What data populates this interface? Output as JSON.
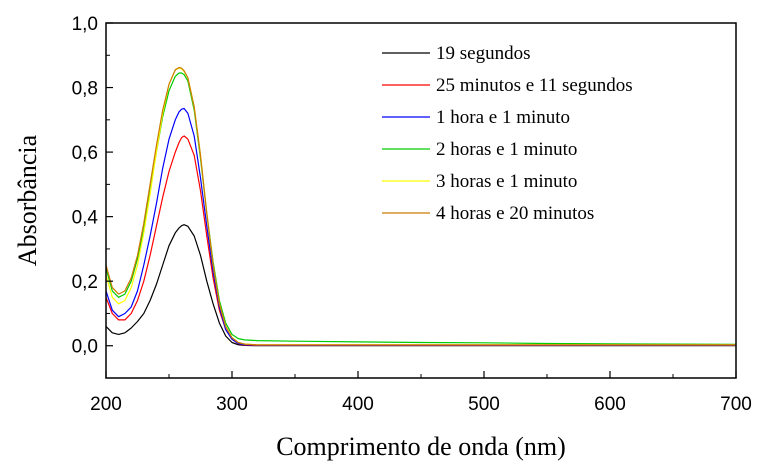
{
  "chart_data": {
    "type": "line",
    "xlabel": "Comprimento de onda (nm)",
    "ylabel": "Absorbância",
    "xlim": [
      200,
      700
    ],
    "ylim": [
      -0.1,
      1.0
    ],
    "x_ticks": [
      200,
      300,
      400,
      500,
      600,
      700
    ],
    "x_tick_labels": [
      "200",
      "300",
      "400",
      "500",
      "600",
      "700"
    ],
    "y_ticks": [
      0.0,
      0.2,
      0.4,
      0.6,
      0.8,
      1.0
    ],
    "y_tick_labels": [
      "0,0",
      "0,2",
      "0,4",
      "0,6",
      "0,8",
      "1,0"
    ],
    "grid": false,
    "legend_position": "top-right",
    "x": [
      200,
      205,
      210,
      215,
      220,
      225,
      230,
      235,
      240,
      245,
      250,
      255,
      258,
      260,
      262,
      265,
      270,
      275,
      280,
      285,
      290,
      295,
      300,
      305,
      310,
      320,
      350,
      400,
      450,
      500,
      550,
      600,
      650,
      700
    ],
    "series": [
      {
        "name": "19 segundos",
        "color": "#000000",
        "values": [
          0.06,
          0.04,
          0.035,
          0.04,
          0.055,
          0.075,
          0.1,
          0.14,
          0.19,
          0.25,
          0.31,
          0.35,
          0.365,
          0.372,
          0.375,
          0.37,
          0.34,
          0.28,
          0.2,
          0.13,
          0.07,
          0.03,
          0.01,
          0.003,
          0.001,
          0.0,
          0.0,
          0.0,
          0.0,
          0.0,
          0.0,
          0.0,
          0.0,
          0.0
        ]
      },
      {
        "name": "25 minutos e 11 segundos",
        "color": "#ff0000",
        "values": [
          0.15,
          0.1,
          0.08,
          0.08,
          0.1,
          0.14,
          0.2,
          0.28,
          0.37,
          0.46,
          0.54,
          0.6,
          0.63,
          0.645,
          0.65,
          0.64,
          0.59,
          0.48,
          0.34,
          0.21,
          0.11,
          0.05,
          0.02,
          0.006,
          0.002,
          0.001,
          0.001,
          0.001,
          0.001,
          0.001,
          0.001,
          0.001,
          0.001,
          0.001
        ]
      },
      {
        "name": "1 hora e 1 minuto",
        "color": "#0000ff",
        "values": [
          0.17,
          0.11,
          0.09,
          0.1,
          0.12,
          0.17,
          0.25,
          0.34,
          0.44,
          0.55,
          0.64,
          0.7,
          0.725,
          0.733,
          0.735,
          0.72,
          0.65,
          0.52,
          0.37,
          0.23,
          0.12,
          0.05,
          0.02,
          0.007,
          0.003,
          0.002,
          0.002,
          0.002,
          0.002,
          0.002,
          0.002,
          0.002,
          0.002,
          0.002
        ]
      },
      {
        "name": "2 horas e 1 minuto",
        "color": "#00cc00",
        "values": [
          0.24,
          0.17,
          0.15,
          0.16,
          0.2,
          0.27,
          0.36,
          0.48,
          0.6,
          0.71,
          0.79,
          0.835,
          0.845,
          0.845,
          0.84,
          0.82,
          0.73,
          0.58,
          0.41,
          0.26,
          0.14,
          0.07,
          0.035,
          0.022,
          0.018,
          0.016,
          0.014,
          0.012,
          0.01,
          0.009,
          0.007,
          0.006,
          0.005,
          0.004
        ]
      },
      {
        "name": "3 horas e 1 minuto",
        "color": "#ffff00",
        "values": [
          0.22,
          0.15,
          0.13,
          0.14,
          0.18,
          0.25,
          0.35,
          0.47,
          0.6,
          0.72,
          0.81,
          0.855,
          0.86,
          0.858,
          0.85,
          0.83,
          0.74,
          0.59,
          0.41,
          0.25,
          0.13,
          0.06,
          0.025,
          0.01,
          0.005,
          0.003,
          0.003,
          0.003,
          0.003,
          0.003,
          0.003,
          0.003,
          0.003,
          0.003
        ]
      },
      {
        "name": "4 horas e 20 minutos",
        "color": "#cc7a00",
        "values": [
          0.25,
          0.18,
          0.16,
          0.17,
          0.21,
          0.28,
          0.38,
          0.5,
          0.62,
          0.73,
          0.81,
          0.855,
          0.862,
          0.86,
          0.852,
          0.83,
          0.74,
          0.59,
          0.41,
          0.25,
          0.13,
          0.06,
          0.025,
          0.01,
          0.005,
          0.003,
          0.003,
          0.003,
          0.003,
          0.003,
          0.003,
          0.003,
          0.003,
          0.003
        ]
      }
    ]
  }
}
